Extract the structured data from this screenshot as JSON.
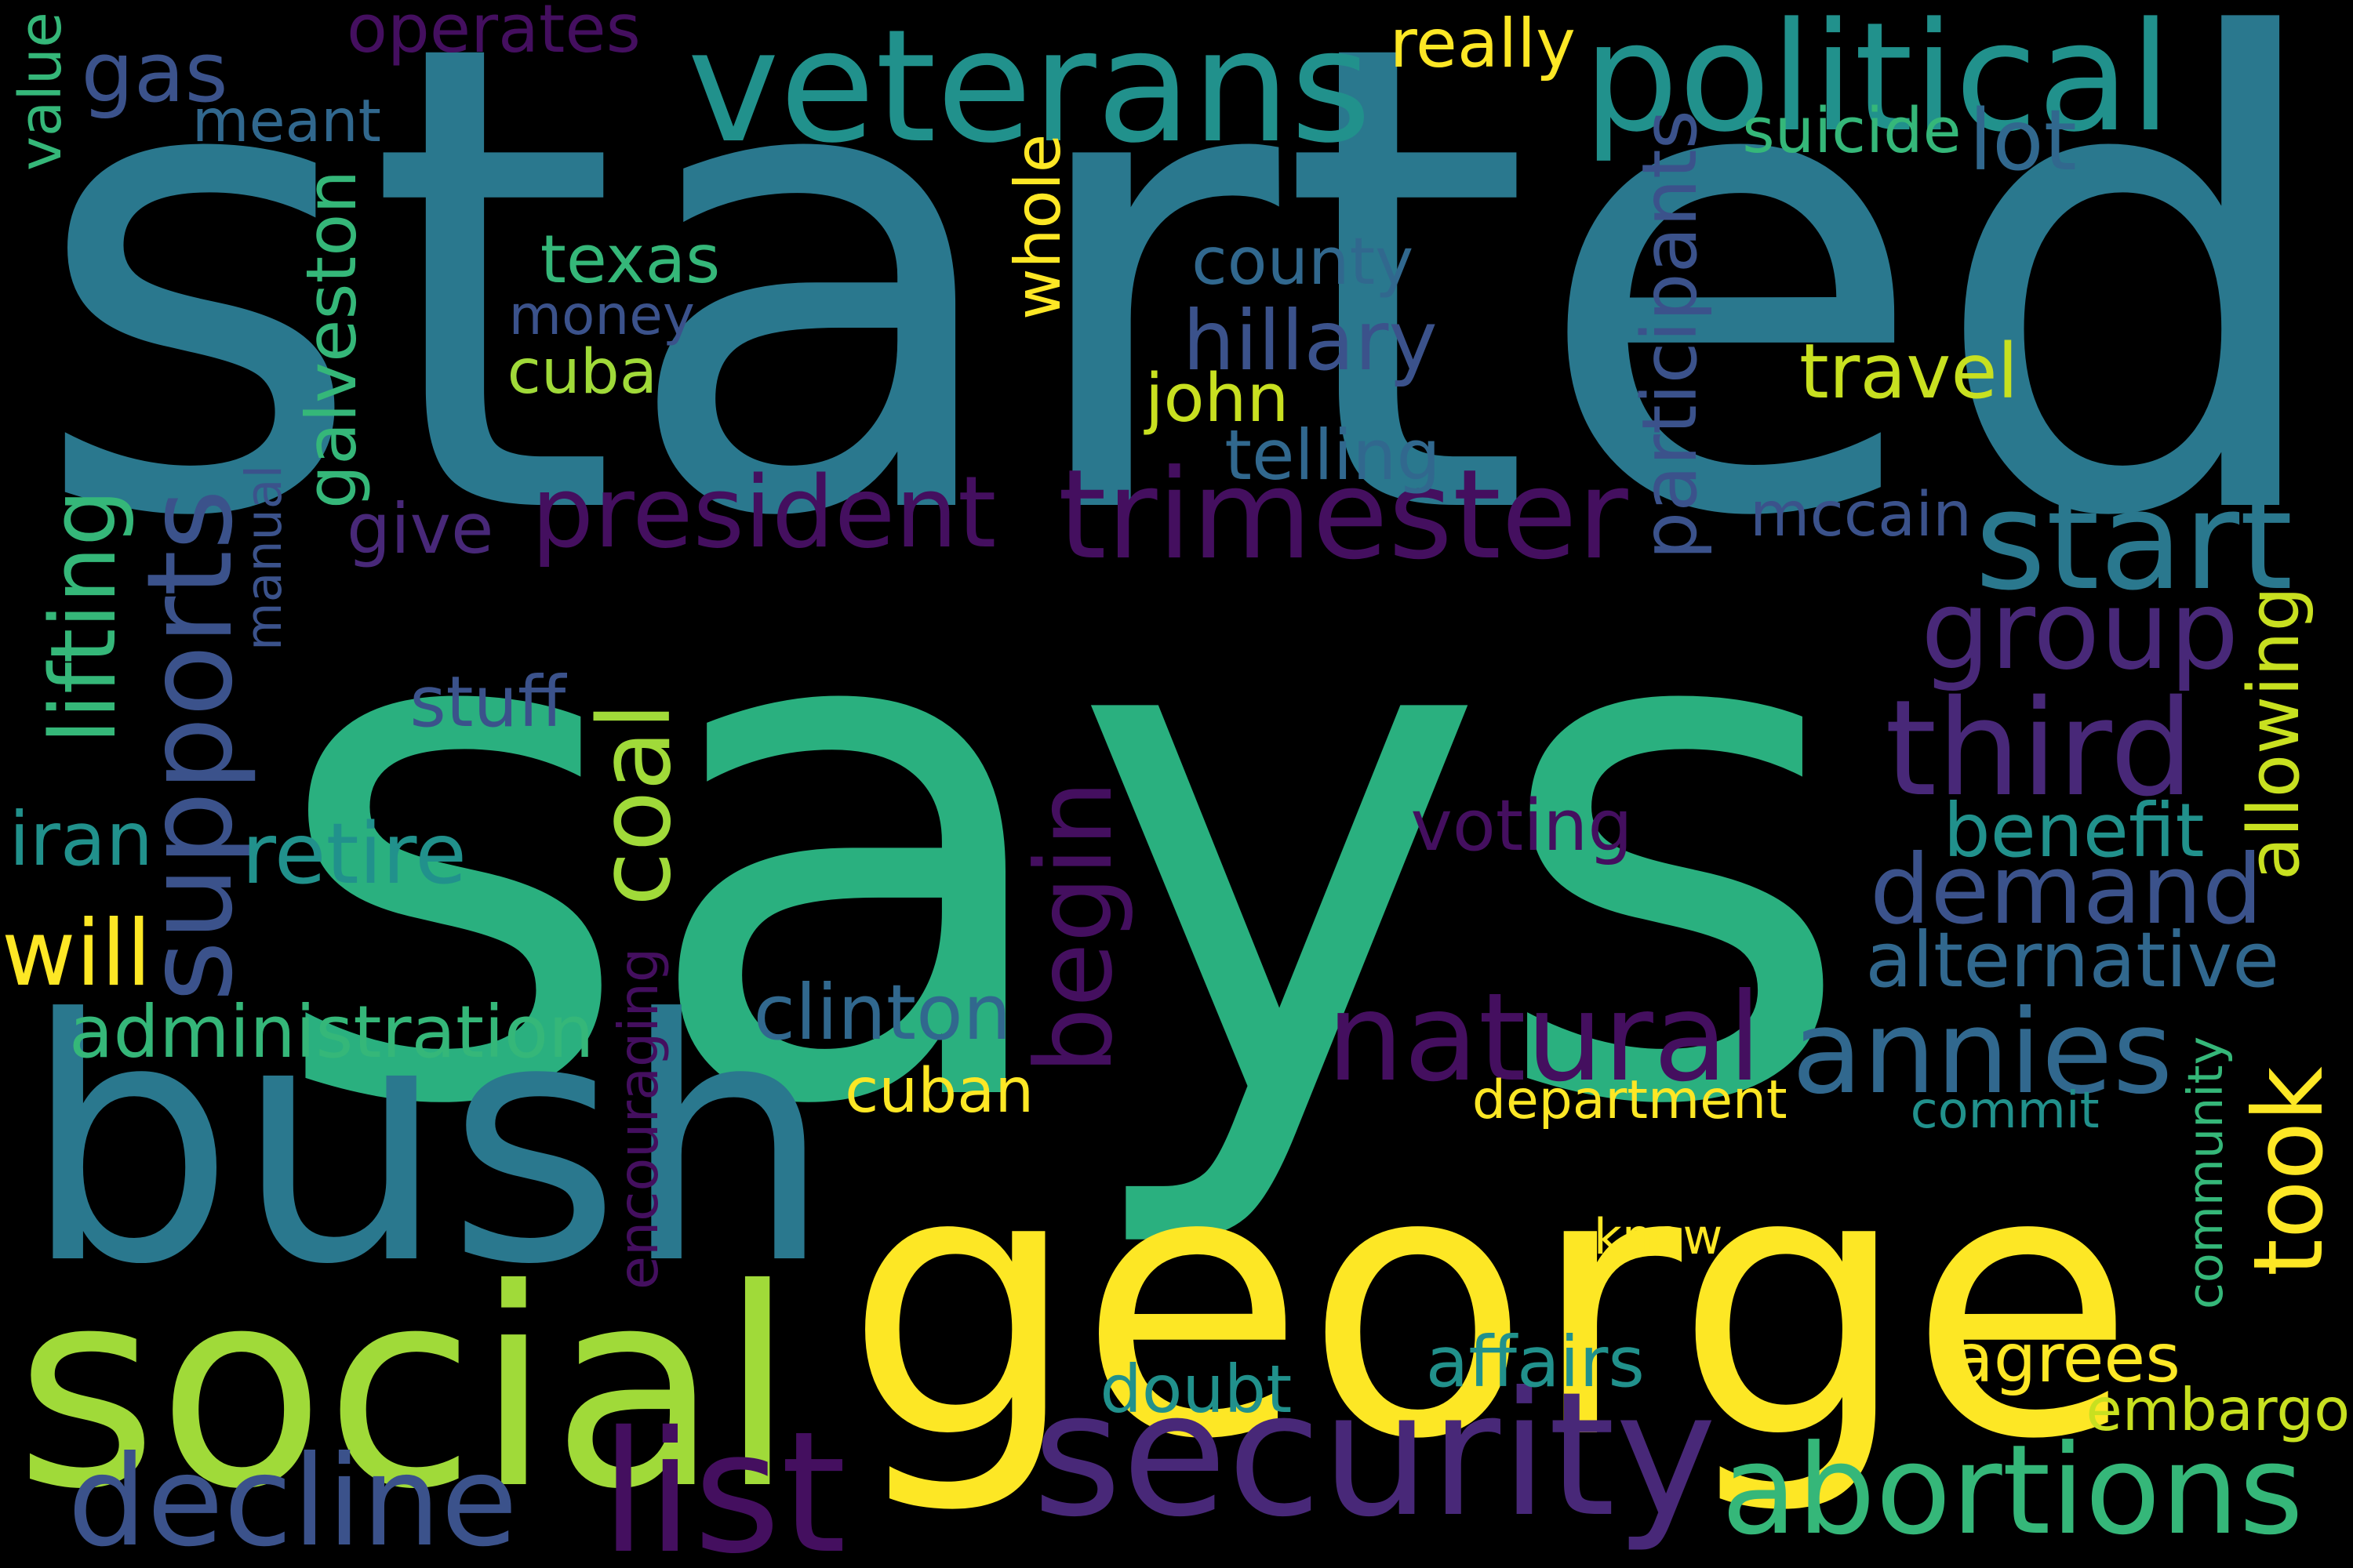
{
  "background": "#000000",
  "words": [
    {
      "text": "started",
      "color": "#2a788e"
    },
    {
      "text": "says",
      "color": "#2ab07f"
    },
    {
      "text": "george",
      "color": "#fde725"
    },
    {
      "text": "bush",
      "color": "#2a788e"
    },
    {
      "text": "social",
      "color": "#a0da39"
    },
    {
      "text": "security",
      "color": "#482878"
    },
    {
      "text": "veterans",
      "color": "#21918c"
    },
    {
      "text": "political",
      "color": "#21918c"
    },
    {
      "text": "gas",
      "color": "#3b528b"
    },
    {
      "text": "trimester",
      "color": "#440f5f"
    },
    {
      "text": "president",
      "color": "#440f5f"
    },
    {
      "text": "start",
      "color": "#2a788e"
    },
    {
      "text": "group",
      "color": "#482878"
    },
    {
      "text": "third",
      "color": "#482878"
    },
    {
      "text": "demand",
      "color": "#3b528b"
    },
    {
      "text": "natural",
      "color": "#440f5f"
    },
    {
      "text": "annies",
      "color": "#31688e"
    },
    {
      "text": "abortions",
      "color": "#35b779"
    },
    {
      "text": "decline",
      "color": "#3b528b"
    },
    {
      "text": "list",
      "color": "#440f5f"
    },
    {
      "text": "supports",
      "color": "#3b528b"
    },
    {
      "text": "coal",
      "color": "#a0da39"
    },
    {
      "text": "begin",
      "color": "#440f5f"
    },
    {
      "text": "took",
      "color": "#fde725"
    },
    {
      "text": "administration",
      "color": "#35b779"
    },
    {
      "text": "texas",
      "color": "#35b779"
    },
    {
      "text": "county",
      "color": "#31688e"
    },
    {
      "text": "hillary",
      "color": "#3b528b"
    },
    {
      "text": "money",
      "color": "#3b528b"
    },
    {
      "text": "cuba",
      "color": "#a0da39"
    },
    {
      "text": "travel",
      "color": "#c8e020"
    },
    {
      "text": "john",
      "color": "#c8e020"
    },
    {
      "text": "telling",
      "color": "#31688e"
    },
    {
      "text": "participants",
      "color": "#3b528b"
    },
    {
      "text": "mccain",
      "color": "#3b528b"
    },
    {
      "text": "galveston",
      "color": "#35b779"
    },
    {
      "text": "whole",
      "color": "#fde725"
    },
    {
      "text": "operates",
      "color": "#440f5f"
    },
    {
      "text": "meant",
      "color": "#31688e"
    },
    {
      "text": "really",
      "color": "#fde725"
    },
    {
      "text": "suicide",
      "color": "#35b779"
    },
    {
      "text": "lot",
      "color": "#31688e"
    },
    {
      "text": "value",
      "color": "#35b779"
    },
    {
      "text": "manual",
      "color": "#3b528b"
    },
    {
      "text": "give",
      "color": "#482878"
    },
    {
      "text": "lifting",
      "color": "#35b779"
    },
    {
      "text": "stuff",
      "color": "#3b528b"
    },
    {
      "text": "iran",
      "color": "#21918c"
    },
    {
      "text": "retire",
      "color": "#21918c"
    },
    {
      "text": "will",
      "color": "#fde725"
    },
    {
      "text": "voting",
      "color": "#440f5f"
    },
    {
      "text": "benefit",
      "color": "#21918c"
    },
    {
      "text": "allowing",
      "color": "#c8e020"
    },
    {
      "text": "alternative",
      "color": "#31688e"
    },
    {
      "text": "clinton",
      "color": "#31688e"
    },
    {
      "text": "encouraging",
      "color": "#440f5f"
    },
    {
      "text": "cuban",
      "color": "#fde725"
    },
    {
      "text": "department",
      "color": "#fde725"
    },
    {
      "text": "commit",
      "color": "#21918c"
    },
    {
      "text": "community",
      "color": "#35b779"
    },
    {
      "text": "know",
      "color": "#fde725"
    },
    {
      "text": "affairs",
      "color": "#21918c"
    },
    {
      "text": "doubt",
      "color": "#21918c"
    },
    {
      "text": "agrees",
      "color": "#fde725"
    },
    {
      "text": "embargo",
      "color": "#c8e020"
    }
  ]
}
